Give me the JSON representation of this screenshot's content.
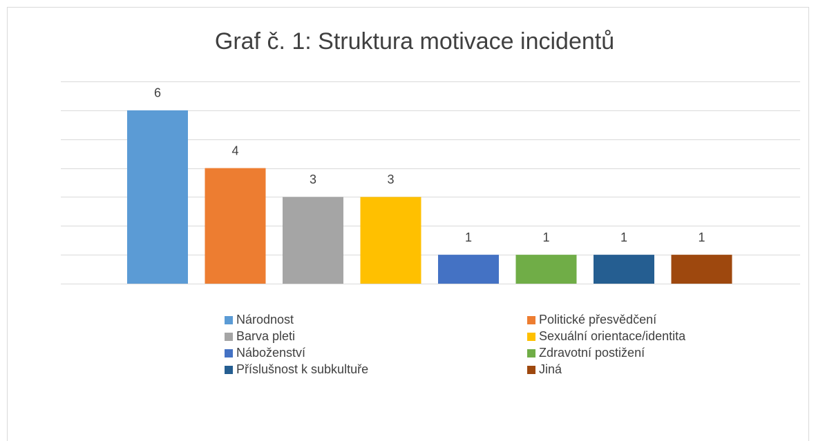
{
  "chart_data": {
    "type": "bar",
    "title": "Graf č. 1: Struktura motivace incidentů",
    "series": [
      {
        "name": "Národnost",
        "color": "#5b9bd5",
        "values": [
          6
        ]
      },
      {
        "name": "Politické přesvědčení",
        "color": "#ed7d31",
        "values": [
          4
        ]
      },
      {
        "name": "Barva pleti",
        "color": "#a5a5a5",
        "values": [
          3
        ]
      },
      {
        "name": "Sexuální orientace/identita",
        "color": "#ffc000",
        "values": [
          3
        ]
      },
      {
        "name": "Náboženství",
        "color": "#4472c4",
        "values": [
          1
        ]
      },
      {
        "name": "Zdravotní postižení",
        "color": "#70ad47",
        "values": [
          1
        ]
      },
      {
        "name": "Příslušnost k subkultuře",
        "color": "#255e91",
        "values": [
          1
        ]
      },
      {
        "name": "Jiná",
        "color": "#9e480e",
        "values": [
          1
        ]
      }
    ],
    "ylim": [
      0,
      7
    ],
    "yticks": [
      0,
      1,
      2,
      3,
      4,
      5,
      6,
      7
    ],
    "grid": true,
    "legend": "bottom"
  }
}
